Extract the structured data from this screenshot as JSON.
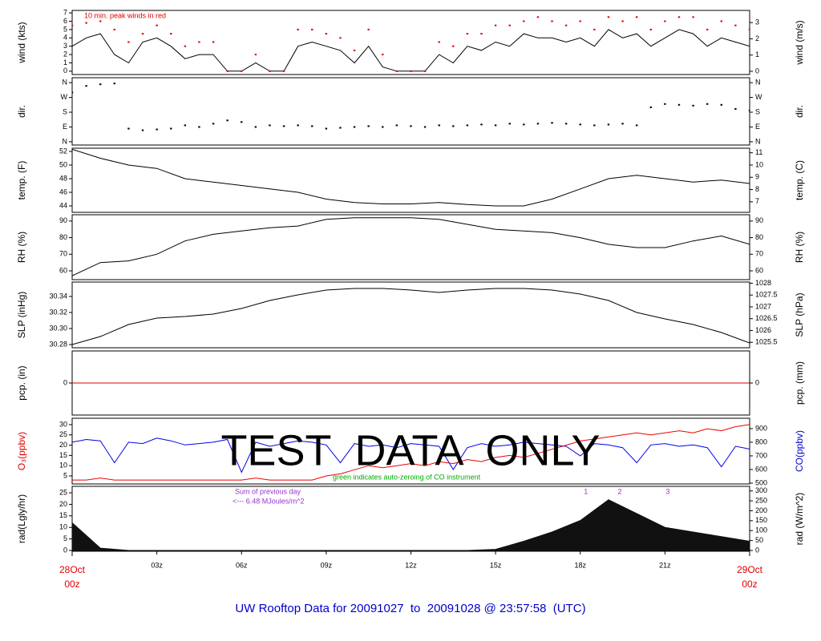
{
  "time_axis": {
    "xlim": [
      0,
      24
    ],
    "xticks": [
      {
        "value": 3,
        "label": "03z"
      },
      {
        "value": 6,
        "label": "06z"
      },
      {
        "value": 9,
        "label": "09z"
      },
      {
        "value": 12,
        "label": "12z"
      },
      {
        "value": 15,
        "label": "15z"
      },
      {
        "value": 18,
        "label": "18z"
      },
      {
        "value": 21,
        "label": "21z"
      }
    ],
    "end_labels": [
      {
        "value": 0,
        "label": "28Oct",
        "sublabel": "00z"
      },
      {
        "value": 24,
        "label": "29Oct",
        "sublabel": "00z"
      }
    ],
    "end_color": "#dd0000"
  },
  "watermark": "TEST  DATA  ONLY",
  "footer": {
    "text": "UW Rooftop Data for 20091027  to  20091028 @ 23:57:58  (UTC)",
    "color": "#0000cc"
  },
  "chart_data": [
    {
      "type": "line",
      "ylabel": "wind (kts)",
      "y2label": "wind (m/s)",
      "ylim": [
        -0.4,
        7.3
      ],
      "yticks": [
        0,
        1,
        2,
        3,
        4,
        5,
        6,
        7
      ],
      "y2lim": [
        -0.2,
        3.75
      ],
      "y2ticks": [
        0,
        1,
        2,
        3
      ],
      "x": [
        0,
        0.5,
        1,
        1.5,
        2,
        2.5,
        3,
        3.5,
        4,
        4.5,
        5,
        5.5,
        6,
        6.5,
        7,
        7.5,
        8,
        8.5,
        9,
        9.5,
        10,
        10.5,
        11,
        11.5,
        12,
        12.5,
        13,
        13.5,
        14,
        14.5,
        15,
        15.5,
        16,
        16.5,
        17,
        17.5,
        18,
        18.5,
        19,
        19.5,
        20,
        20.5,
        21,
        21.5,
        22,
        22.5,
        23,
        23.5,
        24
      ],
      "series": [
        {
          "type": "line",
          "color": "#000000",
          "values": [
            3,
            4,
            4.5,
            2,
            1,
            3.5,
            4,
            3,
            1.5,
            2,
            2,
            0,
            0,
            1,
            0,
            0,
            3,
            3.5,
            3,
            2.5,
            1,
            3,
            0.5,
            0,
            0,
            0,
            2,
            1,
            3,
            2.5,
            3.5,
            3,
            4.5,
            4,
            4,
            3.5,
            4,
            3,
            5,
            4,
            4.5,
            3,
            4,
            5,
            4.5,
            3,
            4,
            3.5,
            3
          ]
        },
        {
          "type": "points",
          "color": "#dd0000",
          "values": [
            5.5,
            5.8,
            6,
            5,
            3.5,
            4.5,
            5.5,
            4.5,
            3,
            3.5,
            3.5,
            0,
            0,
            2,
            0,
            0,
            5,
            5,
            4.5,
            4,
            2.5,
            5,
            2,
            0,
            0,
            0,
            3.5,
            3,
            4.5,
            4.5,
            5.5,
            5.5,
            6,
            6.5,
            6,
            5.5,
            6,
            5,
            6.5,
            6,
            6.5,
            5,
            6,
            6.5,
            6.5,
            5,
            6,
            5.5,
            5
          ]
        }
      ],
      "annotations": [
        {
          "text": "10 min. peak winds in red",
          "color": "#dd0000"
        }
      ]
    },
    {
      "type": "scatter",
      "ylabel": "dir.",
      "y2label": "dir.",
      "ylim": [
        -20,
        390
      ],
      "yticks": [
        {
          "value": 0,
          "label": "N"
        },
        {
          "value": 90,
          "label": "E"
        },
        {
          "value": 180,
          "label": "S"
        },
        {
          "value": 270,
          "label": "W"
        },
        {
          "value": 360,
          "label": "N"
        }
      ],
      "y2lim": [
        -20,
        390
      ],
      "y2ticks": [
        {
          "value": 0,
          "label": "N"
        },
        {
          "value": 90,
          "label": "E"
        },
        {
          "value": 180,
          "label": "S"
        },
        {
          "value": 270,
          "label": "W"
        },
        {
          "value": 360,
          "label": "N"
        }
      ],
      "x": [
        0,
        0.5,
        1,
        1.5,
        2,
        2.5,
        3,
        3.5,
        4,
        4.5,
        5,
        5.5,
        6,
        6.5,
        7,
        7.5,
        8,
        8.5,
        9,
        9.5,
        10,
        10.5,
        11,
        11.5,
        12,
        12.5,
        13,
        13.5,
        14,
        14.5,
        15,
        15.5,
        16,
        16.5,
        17,
        17.5,
        18,
        18.5,
        19,
        19.5,
        20,
        20.5,
        21,
        21.5,
        22,
        22.5,
        23,
        23.5,
        24
      ],
      "series": [
        {
          "type": "points",
          "color": "#000000",
          "values": [
            300,
            340,
            350,
            355,
            80,
            70,
            75,
            80,
            100,
            90,
            110,
            130,
            120,
            90,
            100,
            95,
            100,
            95,
            80,
            85,
            90,
            95,
            90,
            100,
            95,
            90,
            100,
            95,
            100,
            105,
            100,
            110,
            105,
            110,
            115,
            110,
            105,
            100,
            105,
            110,
            100,
            210,
            230,
            225,
            220,
            230,
            225,
            200,
            190
          ]
        }
      ]
    },
    {
      "type": "line",
      "ylabel": "temp. (F)",
      "y2label": "temp. (C)",
      "ylim": [
        43.06,
        52.47
      ],
      "yticks": [
        44,
        46,
        48,
        50,
        52
      ],
      "y2lim": [
        6.14,
        11.37
      ],
      "y2ticks": [
        7,
        8,
        9,
        10,
        11
      ],
      "x": [
        0,
        1,
        2,
        3,
        4,
        5,
        6,
        7,
        8,
        9,
        10,
        11,
        12,
        13,
        14,
        15,
        16,
        17,
        18,
        19,
        20,
        21,
        22,
        23,
        24
      ],
      "series": [
        {
          "type": "line",
          "color": "#000000",
          "values": [
            52.3,
            51,
            50,
            49.5,
            48,
            47.5,
            47,
            46.5,
            46,
            45,
            44.5,
            44.3,
            44.3,
            44.5,
            44.2,
            44,
            44,
            45,
            46.5,
            48,
            48.5,
            48,
            47.5,
            47.8,
            47.3
          ]
        }
      ]
    },
    {
      "type": "line",
      "ylabel": "RH (%)",
      "y2label": "RH (%)",
      "ylim": [
        54.7,
        93.8
      ],
      "yticks": [
        60,
        70,
        80,
        90
      ],
      "y2lim": [
        54.7,
        93.8
      ],
      "y2ticks": [
        60,
        70,
        80,
        90
      ],
      "x": [
        0,
        1,
        2,
        3,
        4,
        5,
        6,
        7,
        8,
        9,
        10,
        11,
        12,
        13,
        14,
        15,
        16,
        17,
        18,
        19,
        20,
        21,
        22,
        23,
        24
      ],
      "series": [
        {
          "type": "line",
          "color": "#000000",
          "values": [
            57,
            65,
            66,
            70,
            78,
            82,
            84,
            86,
            87,
            91,
            92,
            92,
            92,
            91,
            88,
            85,
            84,
            83,
            80,
            76,
            74,
            74,
            78,
            81,
            76
          ]
        }
      ]
    },
    {
      "type": "line",
      "ylabel": "SLP (inHg)",
      "y2label": "SLP (hPa)",
      "ylim": [
        30.276,
        30.358
      ],
      "yticks": [
        {
          "value": 30.28,
          "label": "30.28"
        },
        {
          "value": 30.3,
          "label": "30.30"
        },
        {
          "value": 30.32,
          "label": "30.32"
        },
        {
          "value": 30.34,
          "label": "30.34"
        }
      ],
      "y2lim": [
        1025.27,
        1028.05
      ],
      "y2ticks": [
        1025.5,
        1026,
        1026.5,
        1027,
        1027.5,
        1028
      ],
      "x": [
        0,
        1,
        2,
        3,
        4,
        5,
        6,
        7,
        8,
        9,
        10,
        11,
        12,
        13,
        14,
        15,
        16,
        17,
        18,
        19,
        20,
        21,
        22,
        23,
        24
      ],
      "series": [
        {
          "type": "line",
          "color": "#000000",
          "values": [
            30.28,
            30.29,
            30.305,
            30.313,
            30.315,
            30.318,
            30.325,
            30.335,
            30.342,
            30.348,
            30.35,
            30.35,
            30.348,
            30.345,
            30.348,
            30.35,
            30.35,
            30.348,
            30.343,
            30.335,
            30.32,
            30.312,
            30.305,
            30.295,
            30.282
          ]
        }
      ]
    },
    {
      "type": "line",
      "ylabel": "pcp. (in)",
      "y2label": "pcp. (mm)",
      "ylim": [
        -1,
        1
      ],
      "yticks": [
        0
      ],
      "y2lim": [
        -25.4,
        25.4
      ],
      "y2ticks": [
        0
      ],
      "x": [
        0,
        24
      ],
      "series": [
        {
          "type": "line",
          "color": "#dd0000",
          "values": [
            0,
            0
          ]
        }
      ]
    },
    {
      "type": "line",
      "ylabel": "O₃(ppbv)",
      "ylabel_color": "#dd0000",
      "y2label": "CO(ppbv)",
      "y2label_color": "#0000cc",
      "ylim": [
        1.1,
        33.1
      ],
      "yticks": [
        5,
        10,
        15,
        20,
        25,
        30
      ],
      "y2lim": [
        494,
        976
      ],
      "y2ticks": [
        500,
        600,
        700,
        800,
        900
      ],
      "x": [
        0,
        0.5,
        1,
        1.5,
        2,
        2.5,
        3,
        3.5,
        4,
        4.5,
        5,
        5.5,
        6,
        6.5,
        7,
        7.5,
        8,
        8.5,
        9,
        9.5,
        10,
        10.5,
        11,
        11.5,
        12,
        12.5,
        13,
        13.5,
        14,
        14.5,
        15,
        15.5,
        16,
        16.5,
        17,
        17.5,
        18,
        18.5,
        19,
        19.5,
        20,
        20.5,
        21,
        21.5,
        22,
        22.5,
        23,
        23.5,
        24
      ],
      "series": [
        {
          "type": "line",
          "color": "#0000ee",
          "axis": "y2",
          "values": [
            800,
            820,
            810,
            650,
            800,
            790,
            830,
            810,
            780,
            790,
            800,
            820,
            580,
            800,
            770,
            790,
            810,
            800,
            780,
            650,
            790,
            770,
            780,
            760,
            790,
            780,
            770,
            600,
            760,
            790,
            770,
            780,
            800,
            790,
            780,
            770,
            700,
            790,
            780,
            760,
            650,
            780,
            790,
            770,
            780,
            760,
            620,
            770,
            750
          ]
        },
        {
          "type": "line",
          "color": "#ee0000",
          "values": [
            3,
            3,
            4,
            3,
            3,
            3,
            3,
            3,
            3,
            3,
            3,
            3,
            3,
            4,
            3,
            3,
            3,
            3,
            5,
            6,
            8,
            10,
            9,
            10,
            11,
            10,
            12,
            11,
            13,
            12,
            14,
            15,
            14,
            16,
            18,
            20,
            22,
            23,
            24,
            25,
            26,
            25,
            26,
            27,
            26,
            28,
            27,
            29,
            30
          ]
        }
      ],
      "annotations": [
        {
          "text": "green indicates auto-zeroing of CO instrument",
          "color": "#00aa00"
        }
      ]
    },
    {
      "type": "area",
      "ylabel": "rad(Lgly/hr)",
      "y2label": "rad (W/m^2)",
      "ylim": [
        -0.35,
        27.8
      ],
      "yticks": [
        0,
        5,
        10,
        15,
        20,
        25
      ],
      "y2lim": [
        -4,
        323
      ],
      "y2ticks": [
        0,
        50,
        100,
        150,
        200,
        250,
        300
      ],
      "x": [
        0,
        1,
        2,
        3,
        4,
        5,
        6,
        7,
        8,
        9,
        10,
        11,
        12,
        13,
        14,
        15,
        16,
        17,
        18,
        19,
        20,
        21,
        22,
        23,
        24
      ],
      "series": [
        {
          "type": "area",
          "color": "#111111",
          "values": [
            12,
            1,
            0,
            0,
            0,
            0,
            0,
            0,
            0,
            0,
            0,
            0,
            0,
            0,
            0,
            0.5,
            4,
            8,
            13,
            22,
            16,
            10,
            8,
            6,
            4
          ]
        }
      ],
      "annotations": [
        {
          "text": "Sum of previous day",
          "color": "#9933cc"
        },
        {
          "text": "<--- 6.48 MJoules/m^2",
          "color": "#9933cc"
        }
      ],
      "markers": [
        {
          "x": 18.2,
          "label": "1",
          "color": "#9933cc"
        },
        {
          "x": 19.4,
          "label": "2",
          "color": "#9933cc"
        },
        {
          "x": 21.1,
          "label": "3",
          "color": "#9933cc"
        }
      ]
    }
  ]
}
